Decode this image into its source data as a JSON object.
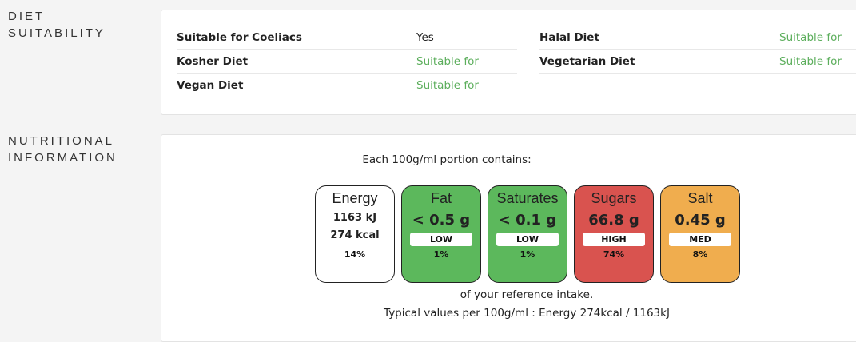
{
  "diet": {
    "heading_line1": "DIET",
    "heading_line2": "SUITABILITY",
    "items": [
      {
        "name": "Suitable for Coeliacs",
        "value": "Yes"
      },
      {
        "name": "Kosher Diet",
        "value": "Suitable for"
      },
      {
        "name": "Vegan Diet",
        "value": "Suitable for"
      },
      {
        "name": "Halal Diet",
        "value": "Suitable for"
      },
      {
        "name": "Vegetarian Diet",
        "value": "Suitable for"
      }
    ],
    "colors": {
      "suitable": "#5cae5c"
    }
  },
  "nutrition": {
    "heading_line1": "NUTRITIONAL",
    "heading_line2": "INFORMATION",
    "portion_text": "Each 100g/ml portion contains:",
    "reference_text": "of your reference intake.",
    "typical_text": "Typical values per 100g/ml : Energy 274kcal / 1163kJ",
    "energy": {
      "name": "Energy",
      "kj": "1163 kJ",
      "kcal": "274 kcal",
      "percent": "14%"
    },
    "boxes": [
      {
        "name": "Fat",
        "value": "< 0.5 g",
        "level": "LOW",
        "percent": "1%",
        "color": "#5cb85c"
      },
      {
        "name": "Saturates",
        "value": "< 0.1 g",
        "level": "LOW",
        "percent": "1%",
        "color": "#5cb85c"
      },
      {
        "name": "Sugars",
        "value": "66.8 g",
        "level": "HIGH",
        "percent": "74%",
        "color": "#d9534f"
      },
      {
        "name": "Salt",
        "value": "0.45 g",
        "level": "MED",
        "percent": "8%",
        "color": "#f0ad4e"
      }
    ]
  }
}
